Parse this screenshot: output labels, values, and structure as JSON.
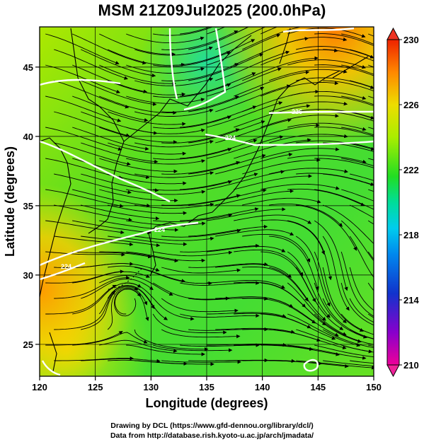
{
  "title": "MSM 21Z09Jul2025 (200.0hPa)",
  "xlabel": "Longitude (degrees)",
  "ylabel": "Latitude  (degrees)",
  "x_ticks": [
    120,
    125,
    130,
    135,
    140,
    145,
    150
  ],
  "y_ticks": [
    25,
    30,
    35,
    40,
    45
  ],
  "colorbar": {
    "ticks": [
      210,
      214,
      218,
      222,
      226,
      230
    ],
    "range": [
      210,
      230
    ],
    "colors": [
      "#ee0099",
      "#8800cc",
      "#1133cc",
      "#00aaee",
      "#00ddaa",
      "#22dd22",
      "#aaee00",
      "#eedd00",
      "#ff8800",
      "#ee2200"
    ]
  },
  "contour_labels": [
    "226",
    "224",
    "224",
    "224"
  ],
  "credit_line1": "Drawing by DCL (https://www.gfd-dennou.org/library/dcl/)",
  "credit_line2": "Data from http://database.rish.kyoto-u.ac.jp/arch/jmadata/",
  "map": {
    "lon_range": [
      120,
      150
    ],
    "lat_range": [
      22.7,
      47.9
    ],
    "field": "temperature (K) with wind streamlines",
    "grid": true
  }
}
